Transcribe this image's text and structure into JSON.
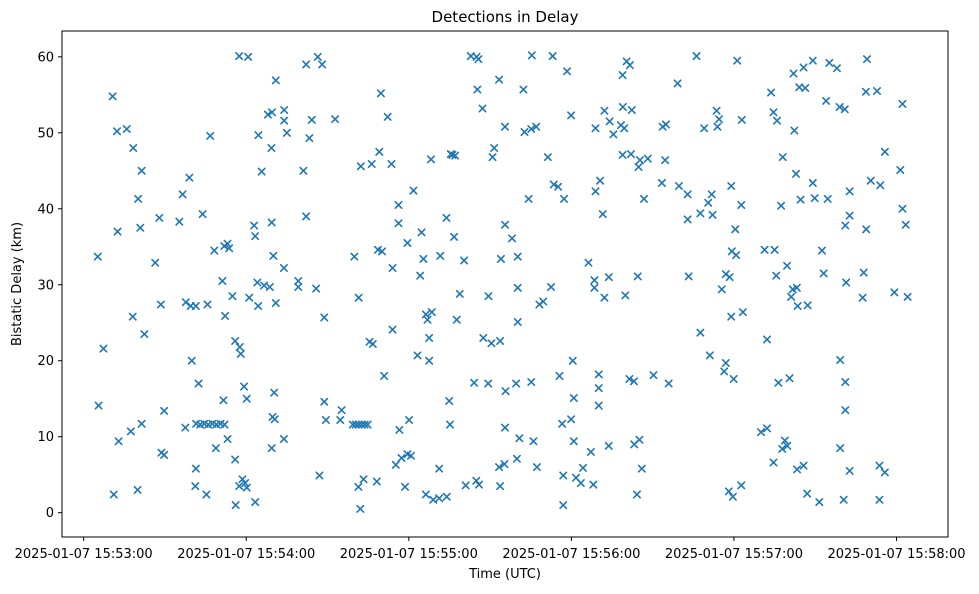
{
  "chart_data": {
    "type": "scatter",
    "title": "Detections in Delay",
    "xlabel": "Time (UTC)",
    "ylabel": "Bistatic Delay (km)",
    "marker": "x",
    "marker_color": "#1f77b4",
    "grid": false,
    "legend": "none",
    "x_unit": "seconds after 2025-01-07 15:53:00",
    "xlim": [
      -8,
      319
    ],
    "ylim": [
      -3.2,
      63.4
    ],
    "xticks": [
      {
        "t": 0,
        "label": "2025-01-07 15:53:00"
      },
      {
        "t": 60,
        "label": "2025-01-07 15:54:00"
      },
      {
        "t": 120,
        "label": "2025-01-07 15:55:00"
      },
      {
        "t": 180,
        "label": "2025-01-07 15:56:00"
      },
      {
        "t": 240,
        "label": "2025-01-07 15:57:00"
      },
      {
        "t": 300,
        "label": "2025-01-07 15:58:00"
      }
    ],
    "yticks": [
      0,
      10,
      20,
      30,
      40,
      50,
      60
    ],
    "points": [
      [
        57.4,
        60.1
      ],
      [
        60.7,
        60.0
      ],
      [
        70.9,
        56.9
      ],
      [
        10.7,
        54.8
      ],
      [
        68.0,
        52.4
      ],
      [
        69.5,
        52.7
      ],
      [
        12.3,
        50.2
      ],
      [
        15.9,
        50.5
      ],
      [
        46.7,
        49.6
      ],
      [
        64.5,
        49.7
      ],
      [
        69.3,
        48.0
      ],
      [
        18.3,
        48.0
      ],
      [
        21.4,
        45.0
      ],
      [
        65.7,
        44.9
      ],
      [
        39.0,
        44.1
      ],
      [
        36.5,
        41.9
      ],
      [
        20.1,
        41.3
      ],
      [
        74.0,
        53.0
      ],
      [
        74.0,
        51.6
      ],
      [
        75.0,
        50.0
      ],
      [
        82.1,
        59.0
      ],
      [
        86.4,
        60.0
      ],
      [
        88.0,
        59.0
      ],
      [
        142.9,
        60.1
      ],
      [
        145.0,
        60.0
      ],
      [
        145.7,
        59.7
      ],
      [
        153.3,
        57.0
      ],
      [
        145.3,
        55.7
      ],
      [
        109.7,
        55.2
      ],
      [
        147.2,
        53.2
      ],
      [
        112.2,
        52.1
      ],
      [
        92.8,
        51.8
      ],
      [
        84.2,
        51.7
      ],
      [
        83.3,
        49.3
      ],
      [
        151.5,
        48.0
      ],
      [
        150.9,
        46.8
      ],
      [
        136.1,
        47.1
      ],
      [
        135.5,
        47.2
      ],
      [
        137.1,
        47.0
      ],
      [
        128.2,
        46.5
      ],
      [
        109.1,
        47.5
      ],
      [
        106.3,
        45.9
      ],
      [
        102.3,
        45.6
      ],
      [
        113.6,
        45.9
      ],
      [
        81.1,
        45.0
      ],
      [
        121.7,
        42.4
      ],
      [
        155.5,
        50.8
      ],
      [
        165.4,
        60.2
      ],
      [
        173.1,
        60.1
      ],
      [
        226.2,
        60.1
      ],
      [
        178.4,
        58.1
      ],
      [
        200.4,
        59.4
      ],
      [
        201.6,
        58.9
      ],
      [
        198.9,
        57.6
      ],
      [
        219.2,
        56.5
      ],
      [
        162.3,
        55.7
      ],
      [
        192.2,
        52.9
      ],
      [
        199.0,
        53.4
      ],
      [
        202.3,
        53.0
      ],
      [
        179.9,
        52.3
      ],
      [
        233.6,
        52.9
      ],
      [
        188.9,
        50.6
      ],
      [
        194.1,
        51.5
      ],
      [
        198.3,
        51.0
      ],
      [
        195.5,
        49.8
      ],
      [
        199.5,
        50.6
      ],
      [
        213.7,
        50.8
      ],
      [
        214.9,
        51.1
      ],
      [
        229.0,
        50.6
      ],
      [
        233.9,
        50.8
      ],
      [
        234.5,
        51.8
      ],
      [
        162.7,
        50.1
      ],
      [
        165.2,
        50.5
      ],
      [
        167.0,
        50.8
      ],
      [
        171.3,
        46.8
      ],
      [
        198.9,
        47.1
      ],
      [
        202.0,
        47.2
      ],
      [
        205.3,
        46.4
      ],
      [
        208.2,
        46.6
      ],
      [
        204.8,
        45.5
      ],
      [
        214.6,
        46.4
      ],
      [
        190.6,
        43.7
      ],
      [
        173.5,
        43.2
      ],
      [
        175.1,
        42.9
      ],
      [
        213.4,
        43.4
      ],
      [
        219.7,
        43.0
      ],
      [
        222.9,
        41.9
      ],
      [
        231.8,
        41.9
      ],
      [
        188.9,
        42.3
      ],
      [
        164.2,
        41.3
      ],
      [
        177.3,
        41.3
      ],
      [
        206.8,
        41.3
      ],
      [
        241.2,
        59.5
      ],
      [
        289.1,
        59.7
      ],
      [
        269.1,
        59.5
      ],
      [
        275.2,
        59.2
      ],
      [
        278.0,
        58.5
      ],
      [
        265.7,
        58.6
      ],
      [
        262.0,
        57.8
      ],
      [
        264.1,
        56.0
      ],
      [
        266.3,
        55.9
      ],
      [
        253.7,
        55.3
      ],
      [
        288.7,
        55.4
      ],
      [
        292.8,
        55.5
      ],
      [
        274.0,
        54.2
      ],
      [
        279.0,
        53.4
      ],
      [
        280.9,
        53.1
      ],
      [
        302.2,
        53.8
      ],
      [
        242.9,
        51.7
      ],
      [
        254.6,
        52.7
      ],
      [
        255.9,
        51.6
      ],
      [
        262.3,
        50.3
      ],
      [
        258.0,
        46.8
      ],
      [
        295.7,
        47.5
      ],
      [
        262.9,
        44.6
      ],
      [
        269.1,
        43.4
      ],
      [
        282.7,
        42.3
      ],
      [
        290.5,
        43.7
      ],
      [
        294.0,
        43.1
      ],
      [
        301.4,
        45.1
      ],
      [
        239.0,
        43.0
      ],
      [
        264.6,
        41.2
      ],
      [
        269.8,
        41.4
      ],
      [
        274.6,
        41.3
      ],
      [
        27.9,
        38.8
      ],
      [
        35.3,
        38.3
      ],
      [
        43.9,
        39.3
      ],
      [
        12.5,
        37.0
      ],
      [
        20.9,
        37.5
      ],
      [
        62.9,
        37.8
      ],
      [
        69.4,
        38.2
      ],
      [
        63.3,
        36.4
      ],
      [
        51.9,
        35.1
      ],
      [
        53.1,
        35.4
      ],
      [
        53.7,
        34.8
      ],
      [
        48.2,
        34.5
      ],
      [
        70.0,
        33.8
      ],
      [
        5.2,
        33.7
      ],
      [
        26.4,
        32.9
      ],
      [
        51.2,
        30.5
      ],
      [
        64.1,
        30.3
      ],
      [
        66.6,
        29.9
      ],
      [
        68.7,
        29.7
      ],
      [
        54.9,
        28.5
      ],
      [
        61.1,
        28.3
      ],
      [
        28.5,
        27.4
      ],
      [
        37.7,
        27.7
      ],
      [
        39.5,
        27.2
      ],
      [
        41.4,
        27.2
      ],
      [
        45.7,
        27.4
      ],
      [
        64.4,
        27.2
      ],
      [
        70.9,
        27.6
      ],
      [
        52.2,
        25.9
      ],
      [
        18.1,
        25.8
      ],
      [
        22.4,
        23.5
      ],
      [
        7.3,
        21.6
      ],
      [
        55.9,
        22.6
      ],
      [
        57.6,
        21.8
      ],
      [
        58.0,
        20.9
      ],
      [
        39.9,
        20.0
      ],
      [
        73.9,
        32.2
      ],
      [
        116.2,
        40.5
      ],
      [
        82.1,
        39.0
      ],
      [
        116.2,
        38.1
      ],
      [
        133.9,
        38.8
      ],
      [
        124.7,
        36.9
      ],
      [
        136.7,
        36.3
      ],
      [
        119.5,
        35.5
      ],
      [
        108.6,
        34.6
      ],
      [
        110.1,
        34.4
      ],
      [
        99.9,
        33.7
      ],
      [
        125.4,
        33.4
      ],
      [
        131.6,
        33.8
      ],
      [
        140.4,
        33.2
      ],
      [
        154.0,
        33.4
      ],
      [
        114.0,
        32.2
      ],
      [
        124.2,
        31.2
      ],
      [
        79.2,
        30.5
      ],
      [
        79.2,
        29.7
      ],
      [
        85.8,
        29.5
      ],
      [
        101.5,
        28.3
      ],
      [
        138.8,
        28.8
      ],
      [
        149.4,
        28.5
      ],
      [
        88.8,
        25.7
      ],
      [
        126.3,
        26.1
      ],
      [
        128.5,
        26.4
      ],
      [
        126.9,
        25.4
      ],
      [
        137.7,
        25.4
      ],
      [
        114.0,
        24.1
      ],
      [
        105.5,
        22.5
      ],
      [
        106.7,
        22.2
      ],
      [
        127.5,
        23.0
      ],
      [
        147.5,
        23.0
      ],
      [
        150.5,
        22.3
      ],
      [
        153.7,
        22.6
      ],
      [
        123.2,
        20.7
      ],
      [
        127.5,
        20.0
      ],
      [
        155.5,
        37.9
      ],
      [
        230.5,
        40.8
      ],
      [
        191.6,
        39.3
      ],
      [
        222.9,
        38.6
      ],
      [
        227.6,
        39.4
      ],
      [
        232.1,
        39.2
      ],
      [
        158.1,
        36.1
      ],
      [
        160.2,
        33.7
      ],
      [
        186.3,
        32.9
      ],
      [
        188.5,
        30.6
      ],
      [
        193.8,
        31.0
      ],
      [
        188.5,
        29.6
      ],
      [
        204.5,
        31.1
      ],
      [
        223.3,
        31.1
      ],
      [
        160.2,
        29.6
      ],
      [
        172.5,
        29.7
      ],
      [
        237.0,
        31.4
      ],
      [
        235.5,
        29.4
      ],
      [
        192.2,
        28.3
      ],
      [
        199.9,
        28.6
      ],
      [
        168.2,
        27.4
      ],
      [
        169.6,
        27.8
      ],
      [
        160.2,
        25.1
      ],
      [
        227.6,
        23.7
      ],
      [
        180.5,
        20.0
      ],
      [
        231.1,
        20.7
      ],
      [
        242.7,
        40.5
      ],
      [
        257.4,
        40.4
      ],
      [
        302.2,
        40.0
      ],
      [
        282.7,
        39.1
      ],
      [
        281.1,
        37.8
      ],
      [
        288.8,
        37.3
      ],
      [
        303.4,
        37.9
      ],
      [
        240.5,
        37.3
      ],
      [
        251.3,
        34.6
      ],
      [
        255.0,
        34.6
      ],
      [
        272.5,
        34.5
      ],
      [
        239.2,
        34.4
      ],
      [
        240.8,
        33.9
      ],
      [
        259.6,
        32.5
      ],
      [
        238.4,
        31.0
      ],
      [
        255.6,
        31.2
      ],
      [
        273.1,
        31.5
      ],
      [
        281.4,
        30.3
      ],
      [
        287.9,
        31.6
      ],
      [
        261.7,
        29.4
      ],
      [
        263.2,
        29.6
      ],
      [
        261.1,
        28.4
      ],
      [
        287.5,
        28.3
      ],
      [
        299.2,
        29.0
      ],
      [
        304.1,
        28.4
      ],
      [
        263.5,
        27.2
      ],
      [
        267.2,
        27.3
      ],
      [
        243.3,
        26.4
      ],
      [
        239.0,
        25.8
      ],
      [
        252.2,
        22.8
      ],
      [
        279.2,
        20.1
      ],
      [
        237.0,
        19.7
      ],
      [
        42.4,
        17.0
      ],
      [
        59.2,
        16.6
      ],
      [
        51.6,
        14.8
      ],
      [
        60.2,
        15.0
      ],
      [
        70.3,
        15.8
      ],
      [
        5.5,
        14.1
      ],
      [
        29.7,
        13.4
      ],
      [
        69.7,
        12.6
      ],
      [
        70.5,
        12.3
      ],
      [
        37.5,
        11.2
      ],
      [
        41.5,
        11.7
      ],
      [
        43.0,
        11.6
      ],
      [
        44.5,
        11.7
      ],
      [
        46.0,
        11.6
      ],
      [
        47.5,
        11.7
      ],
      [
        49.0,
        11.6
      ],
      [
        50.5,
        11.7
      ],
      [
        52.0,
        11.6
      ],
      [
        53.1,
        9.7
      ],
      [
        12.9,
        9.4
      ],
      [
        17.4,
        10.7
      ],
      [
        21.4,
        11.7
      ],
      [
        48.8,
        8.5
      ],
      [
        69.4,
        8.5
      ],
      [
        73.9,
        9.7
      ],
      [
        28.7,
        7.9
      ],
      [
        29.7,
        7.6
      ],
      [
        55.9,
        7.0
      ],
      [
        41.4,
        5.8
      ],
      [
        41.2,
        3.5
      ],
      [
        45.3,
        2.4
      ],
      [
        58.6,
        4.4
      ],
      [
        59.6,
        3.9
      ],
      [
        57.4,
        3.5
      ],
      [
        60.2,
        3.3
      ],
      [
        56.1,
        1.0
      ],
      [
        63.3,
        1.4
      ],
      [
        11.1,
        2.4
      ],
      [
        19.9,
        3.0
      ],
      [
        110.9,
        18.0
      ],
      [
        144.1,
        17.1
      ],
      [
        149.3,
        17.0
      ],
      [
        88.8,
        14.6
      ],
      [
        95.2,
        13.5
      ],
      [
        134.9,
        14.7
      ],
      [
        89.4,
        12.2
      ],
      [
        94.7,
        12.2
      ],
      [
        99.3,
        11.6
      ],
      [
        100.4,
        11.6
      ],
      [
        101.5,
        11.6
      ],
      [
        102.6,
        11.6
      ],
      [
        103.7,
        11.6
      ],
      [
        104.8,
        11.6
      ],
      [
        116.5,
        10.9
      ],
      [
        120.1,
        12.2
      ],
      [
        135.2,
        11.6
      ],
      [
        117.3,
        7.2
      ],
      [
        119.5,
        7.7
      ],
      [
        120.8,
        7.5
      ],
      [
        115.2,
        6.3
      ],
      [
        131.2,
        5.8
      ],
      [
        87.0,
        4.9
      ],
      [
        103.3,
        4.4
      ],
      [
        101.4,
        3.4
      ],
      [
        108.2,
        4.1
      ],
      [
        118.6,
        3.4
      ],
      [
        126.3,
        2.4
      ],
      [
        129.0,
        1.7
      ],
      [
        131.2,
        1.9
      ],
      [
        134.0,
        2.1
      ],
      [
        141.0,
        3.6
      ],
      [
        144.9,
        4.2
      ],
      [
        145.9,
        3.7
      ],
      [
        102.1,
        0.5
      ],
      [
        153.3,
        6.0
      ],
      [
        155.3,
        6.4
      ],
      [
        153.7,
        3.5
      ],
      [
        175.6,
        18.0
      ],
      [
        190.1,
        18.2
      ],
      [
        159.6,
        17.0
      ],
      [
        165.2,
        17.2
      ],
      [
        155.7,
        16.0
      ],
      [
        201.4,
        17.6
      ],
      [
        203.1,
        17.3
      ],
      [
        210.3,
        18.1
      ],
      [
        215.9,
        17.0
      ],
      [
        180.9,
        15.1
      ],
      [
        190.1,
        16.4
      ],
      [
        190.1,
        14.1
      ],
      [
        176.6,
        11.7
      ],
      [
        179.9,
        12.3
      ],
      [
        155.5,
        11.2
      ],
      [
        160.8,
        9.8
      ],
      [
        166.0,
        9.4
      ],
      [
        180.9,
        9.4
      ],
      [
        187.2,
        8.0
      ],
      [
        193.8,
        8.8
      ],
      [
        203.2,
        9.0
      ],
      [
        205.1,
        9.6
      ],
      [
        159.9,
        7.1
      ],
      [
        167.3,
        6.0
      ],
      [
        184.3,
        5.9
      ],
      [
        177.0,
        4.9
      ],
      [
        181.7,
        4.6
      ],
      [
        183.5,
        3.9
      ],
      [
        188.1,
        3.7
      ],
      [
        206.0,
        5.8
      ],
      [
        204.2,
        2.4
      ],
      [
        177.0,
        1.0
      ],
      [
        236.4,
        18.6
      ],
      [
        239.9,
        17.6
      ],
      [
        256.4,
        17.1
      ],
      [
        260.5,
        17.7
      ],
      [
        281.1,
        17.2
      ],
      [
        281.1,
        13.5
      ],
      [
        250.0,
        10.6
      ],
      [
        252.2,
        11.1
      ],
      [
        258.8,
        9.5
      ],
      [
        257.8,
        8.4
      ],
      [
        259.7,
        8.8
      ],
      [
        254.6,
        6.6
      ],
      [
        263.3,
        5.7
      ],
      [
        265.7,
        6.2
      ],
      [
        279.2,
        8.5
      ],
      [
        282.7,
        5.5
      ],
      [
        293.7,
        6.2
      ],
      [
        295.7,
        5.3
      ],
      [
        242.7,
        3.6
      ],
      [
        238.1,
        2.8
      ],
      [
        239.6,
        2.1
      ],
      [
        267.0,
        2.5
      ],
      [
        271.5,
        1.4
      ],
      [
        280.5,
        1.7
      ],
      [
        293.7,
        1.7
      ]
    ]
  }
}
